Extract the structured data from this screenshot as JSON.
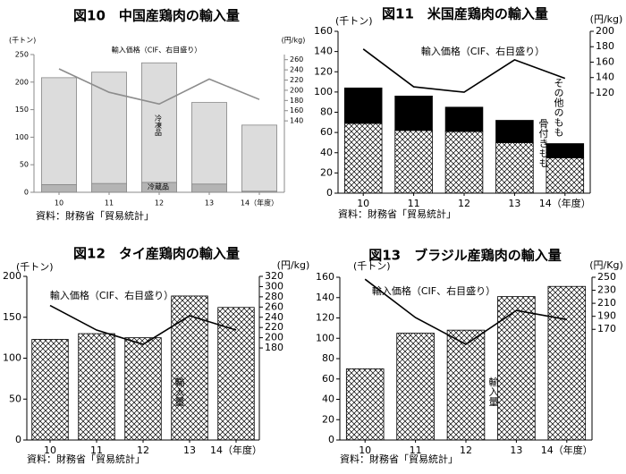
{
  "chart_data": [
    {
      "type": "bar",
      "title": "図10　中国産鶏肉の輸入量",
      "y_unit": "(千トン)",
      "y2_unit": "(円/kg)",
      "source": "資料：財務省「貿易統計」",
      "categories": [
        "10",
        "11",
        "12",
        "13",
        "14（年度）"
      ],
      "series": [
        {
          "name": "冷蔵品",
          "color": "#b4b4b4",
          "values": [
            14,
            16,
            18,
            15,
            2
          ]
        },
        {
          "name": "冷凍品",
          "color": "#dcdcdc",
          "values": [
            194,
            202,
            217,
            148,
            120
          ]
        },
        {
          "name": "輸入価格（CIF、右目盛り）",
          "color": "#8c8c8c",
          "axis": "y2",
          "values": [
            242,
            196,
            173,
            222,
            182
          ]
        }
      ],
      "ylim": [
        0,
        250
      ],
      "yticks": [
        0,
        50,
        100,
        150,
        200,
        250
      ],
      "y2lim": [
        0,
        270
      ],
      "y2ticks": [
        140,
        160,
        180,
        200,
        220,
        240,
        260
      ]
    },
    {
      "type": "bar",
      "title": "図11　米国産鶏肉の輸入量",
      "y_unit": "(千トン)",
      "y2_unit": "(円/kg)",
      "source": "資料：財務省「貿易統計」",
      "categories": [
        "10",
        "11",
        "12",
        "13",
        "14（年度）"
      ],
      "series": [
        {
          "name": "骨付きもも",
          "color": "crosshatch",
          "values": [
            69,
            62,
            61,
            50,
            35
          ]
        },
        {
          "name": "その他のもも",
          "color": "#000000",
          "values": [
            35,
            34,
            24,
            22,
            14
          ]
        },
        {
          "name": "輸入価格（CIF、右目盛り）",
          "color": "#000000",
          "axis": "y2",
          "values": [
            177,
            128,
            121,
            163,
            139
          ]
        }
      ],
      "ylim": [
        0,
        160
      ],
      "yticks": [
        0,
        20,
        40,
        60,
        80,
        100,
        120,
        140,
        160
      ],
      "y2lim": [
        -10,
        200
      ],
      "y2ticks": [
        120,
        140,
        160,
        180,
        200
      ]
    },
    {
      "type": "bar",
      "title": "図12　タイ産鶏肉の輸入量",
      "y_unit": "(千トン)",
      "y2_unit": "(円/kg)",
      "source": "資料：財務省「貿易統計」",
      "categories": [
        "10",
        "11",
        "12",
        "13",
        "14（年度）"
      ],
      "series": [
        {
          "name": "輸入量",
          "color": "crosshatch",
          "values": [
            123,
            130,
            125,
            176,
            162
          ]
        },
        {
          "name": "輸入価格（CIF、右目盛り）",
          "color": "#000000",
          "axis": "y2",
          "values": [
            263,
            215,
            187,
            243,
            215
          ]
        }
      ],
      "ylim": [
        0,
        200
      ],
      "yticks": [
        0,
        50,
        100,
        150,
        200
      ],
      "y2lim": [
        0,
        320
      ],
      "y2ticks": [
        180,
        200,
        220,
        240,
        260,
        280,
        300,
        320
      ]
    },
    {
      "type": "bar",
      "title": "図13　ブラジル産鶏肉の輸入量",
      "y_unit": "(千トン)",
      "y2_unit": "(円/Kg)",
      "source": "資料：財務省「貿易統計」",
      "categories": [
        "10",
        "11",
        "12",
        "13",
        "14（年度）"
      ],
      "series": [
        {
          "name": "輸入量",
          "color": "crosshatch",
          "values": [
            70,
            105,
            108,
            141,
            151
          ]
        },
        {
          "name": "輸入価格（CIF、右目盛り）",
          "color": "#000000",
          "axis": "y2",
          "values": [
            247,
            188,
            147,
            199,
            185
          ]
        }
      ],
      "ylim": [
        0,
        160
      ],
      "yticks": [
        0,
        20,
        40,
        60,
        80,
        100,
        120,
        140,
        160
      ],
      "y2lim": [
        0,
        250
      ],
      "y2ticks": [
        170,
        190,
        210,
        230,
        250
      ]
    }
  ]
}
